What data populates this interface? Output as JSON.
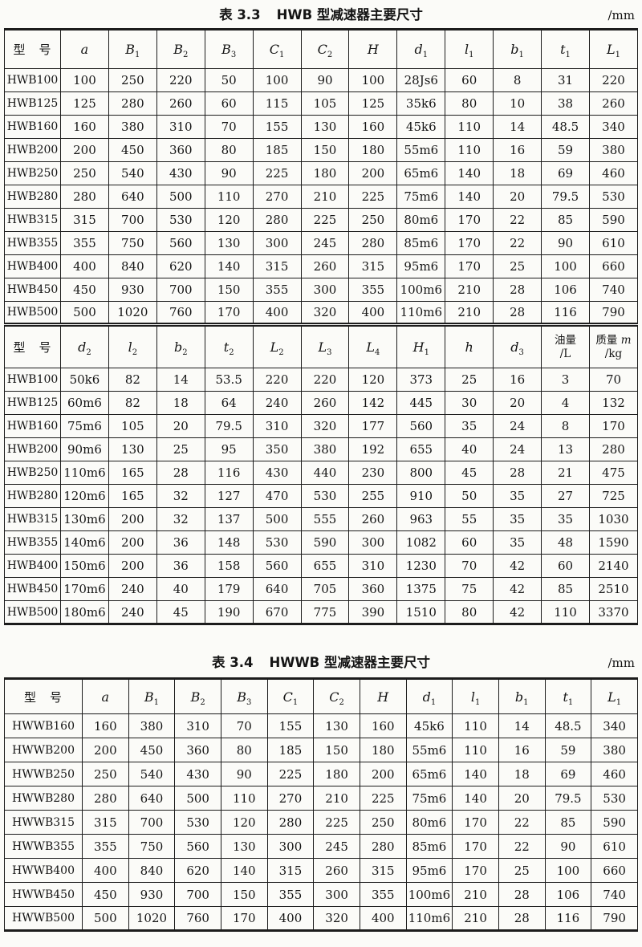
{
  "table1": {
    "caption_prefix": "表 3.3",
    "caption_title": "HWB 型减速器主要尺寸",
    "unit": "/mm",
    "part1": {
      "headers": [
        {
          "text": "型　号"
        },
        {
          "base": "a"
        },
        {
          "base": "B",
          "sub": "1"
        },
        {
          "base": "B",
          "sub": "2"
        },
        {
          "base": "B",
          "sub": "3"
        },
        {
          "base": "C",
          "sub": "1"
        },
        {
          "base": "C",
          "sub": "2"
        },
        {
          "base": "H"
        },
        {
          "base": "d",
          "sub": "1"
        },
        {
          "base": "l",
          "sub": "1"
        },
        {
          "base": "b",
          "sub": "1"
        },
        {
          "base": "t",
          "sub": "1"
        },
        {
          "base": "L",
          "sub": "1"
        }
      ],
      "rows": [
        [
          "HWB100",
          "100",
          "250",
          "220",
          "50",
          "100",
          "90",
          "100",
          "28Js6",
          "60",
          "8",
          "31",
          "220"
        ],
        [
          "HWB125",
          "125",
          "280",
          "260",
          "60",
          "115",
          "105",
          "125",
          "35k6",
          "80",
          "10",
          "38",
          "260"
        ],
        [
          "HWB160",
          "160",
          "380",
          "310",
          "70",
          "155",
          "130",
          "160",
          "45k6",
          "110",
          "14",
          "48.5",
          "340"
        ],
        [
          "HWB200",
          "200",
          "450",
          "360",
          "80",
          "185",
          "150",
          "180",
          "55m6",
          "110",
          "16",
          "59",
          "380"
        ],
        [
          "HWB250",
          "250",
          "540",
          "430",
          "90",
          "225",
          "180",
          "200",
          "65m6",
          "140",
          "18",
          "69",
          "460"
        ],
        [
          "HWB280",
          "280",
          "640",
          "500",
          "110",
          "270",
          "210",
          "225",
          "75m6",
          "140",
          "20",
          "79.5",
          "530"
        ],
        [
          "HWB315",
          "315",
          "700",
          "530",
          "120",
          "280",
          "225",
          "250",
          "80m6",
          "170",
          "22",
          "85",
          "590"
        ],
        [
          "HWB355",
          "355",
          "750",
          "560",
          "130",
          "300",
          "245",
          "280",
          "85m6",
          "170",
          "22",
          "90",
          "610"
        ],
        [
          "HWB400",
          "400",
          "840",
          "620",
          "140",
          "315",
          "260",
          "315",
          "95m6",
          "170",
          "25",
          "100",
          "660"
        ],
        [
          "HWB450",
          "450",
          "930",
          "700",
          "150",
          "355",
          "300",
          "355",
          "100m6",
          "210",
          "28",
          "106",
          "740"
        ],
        [
          "HWB500",
          "500",
          "1020",
          "760",
          "170",
          "400",
          "320",
          "400",
          "110m6",
          "210",
          "28",
          "116",
          "790"
        ]
      ]
    },
    "part2": {
      "headers": [
        {
          "text": "型　号"
        },
        {
          "base": "d",
          "sub": "2"
        },
        {
          "base": "l",
          "sub": "2"
        },
        {
          "base": "b",
          "sub": "2"
        },
        {
          "base": "t",
          "sub": "2"
        },
        {
          "base": "L",
          "sub": "2"
        },
        {
          "base": "L",
          "sub": "3"
        },
        {
          "base": "L",
          "sub": "4"
        },
        {
          "base": "H",
          "sub": "1"
        },
        {
          "base": "h"
        },
        {
          "base": "d",
          "sub": "3"
        },
        {
          "top": "油量",
          "bottom": "/L"
        },
        {
          "top": "质量 ",
          "top_var": "m",
          "bottom": "/kg"
        }
      ],
      "rows": [
        [
          "HWB100",
          "50k6",
          "82",
          "14",
          "53.5",
          "220",
          "220",
          "120",
          "373",
          "25",
          "16",
          "3",
          "70"
        ],
        [
          "HWB125",
          "60m6",
          "82",
          "18",
          "64",
          "240",
          "260",
          "142",
          "445",
          "30",
          "20",
          "4",
          "132"
        ],
        [
          "HWB160",
          "75m6",
          "105",
          "20",
          "79.5",
          "310",
          "320",
          "177",
          "560",
          "35",
          "24",
          "8",
          "170"
        ],
        [
          "HWB200",
          "90m6",
          "130",
          "25",
          "95",
          "350",
          "380",
          "192",
          "655",
          "40",
          "24",
          "13",
          "280"
        ],
        [
          "HWB250",
          "110m6",
          "165",
          "28",
          "116",
          "430",
          "440",
          "230",
          "800",
          "45",
          "28",
          "21",
          "475"
        ],
        [
          "HWB280",
          "120m6",
          "165",
          "32",
          "127",
          "470",
          "530",
          "255",
          "910",
          "50",
          "35",
          "27",
          "725"
        ],
        [
          "HWB315",
          "130m6",
          "200",
          "32",
          "137",
          "500",
          "555",
          "260",
          "963",
          "55",
          "35",
          "35",
          "1030"
        ],
        [
          "HWB355",
          "140m6",
          "200",
          "36",
          "148",
          "530",
          "590",
          "300",
          "1082",
          "60",
          "35",
          "48",
          "1590"
        ],
        [
          "HWB400",
          "150m6",
          "200",
          "36",
          "158",
          "560",
          "655",
          "310",
          "1230",
          "70",
          "42",
          "60",
          "2140"
        ],
        [
          "HWB450",
          "170m6",
          "240",
          "40",
          "179",
          "640",
          "705",
          "360",
          "1375",
          "75",
          "42",
          "85",
          "2510"
        ],
        [
          "HWB500",
          "180m6",
          "240",
          "45",
          "190",
          "670",
          "775",
          "390",
          "1510",
          "80",
          "42",
          "110",
          "3370"
        ]
      ]
    }
  },
  "table2": {
    "caption_prefix": "表 3.4",
    "caption_title": "HWWB 型减速器主要尺寸",
    "unit": "/mm",
    "headers": [
      {
        "text": "型　号"
      },
      {
        "base": "a"
      },
      {
        "base": "B",
        "sub": "1"
      },
      {
        "base": "B",
        "sub": "2"
      },
      {
        "base": "B",
        "sub": "3"
      },
      {
        "base": "C",
        "sub": "1"
      },
      {
        "base": "C",
        "sub": "2"
      },
      {
        "base": "H"
      },
      {
        "base": "d",
        "sub": "1"
      },
      {
        "base": "l",
        "sub": "1"
      },
      {
        "base": "b",
        "sub": "1"
      },
      {
        "base": "t",
        "sub": "1"
      },
      {
        "base": "L",
        "sub": "1"
      }
    ],
    "rows": [
      [
        "HWWB160",
        "160",
        "380",
        "310",
        "70",
        "155",
        "130",
        "160",
        "45k6",
        "110",
        "14",
        "48.5",
        "340"
      ],
      [
        "HWWB200",
        "200",
        "450",
        "360",
        "80",
        "185",
        "150",
        "180",
        "55m6",
        "110",
        "16",
        "59",
        "380"
      ],
      [
        "HWWB250",
        "250",
        "540",
        "430",
        "90",
        "225",
        "180",
        "200",
        "65m6",
        "140",
        "18",
        "69",
        "460"
      ],
      [
        "HWWB280",
        "280",
        "640",
        "500",
        "110",
        "270",
        "210",
        "225",
        "75m6",
        "140",
        "20",
        "79.5",
        "530"
      ],
      [
        "HWWB315",
        "315",
        "700",
        "530",
        "120",
        "280",
        "225",
        "250",
        "80m6",
        "170",
        "22",
        "85",
        "590"
      ],
      [
        "HWWB355",
        "355",
        "750",
        "560",
        "130",
        "300",
        "245",
        "280",
        "85m6",
        "170",
        "22",
        "90",
        "610"
      ],
      [
        "HWWB400",
        "400",
        "840",
        "620",
        "140",
        "315",
        "260",
        "315",
        "95m6",
        "170",
        "25",
        "100",
        "660"
      ],
      [
        "HWWB450",
        "450",
        "930",
        "700",
        "150",
        "355",
        "300",
        "355",
        "100m6",
        "210",
        "28",
        "106",
        "740"
      ],
      [
        "HWWB500",
        "500",
        "1020",
        "760",
        "170",
        "400",
        "320",
        "400",
        "110m6",
        "210",
        "28",
        "116",
        "790"
      ]
    ]
  }
}
